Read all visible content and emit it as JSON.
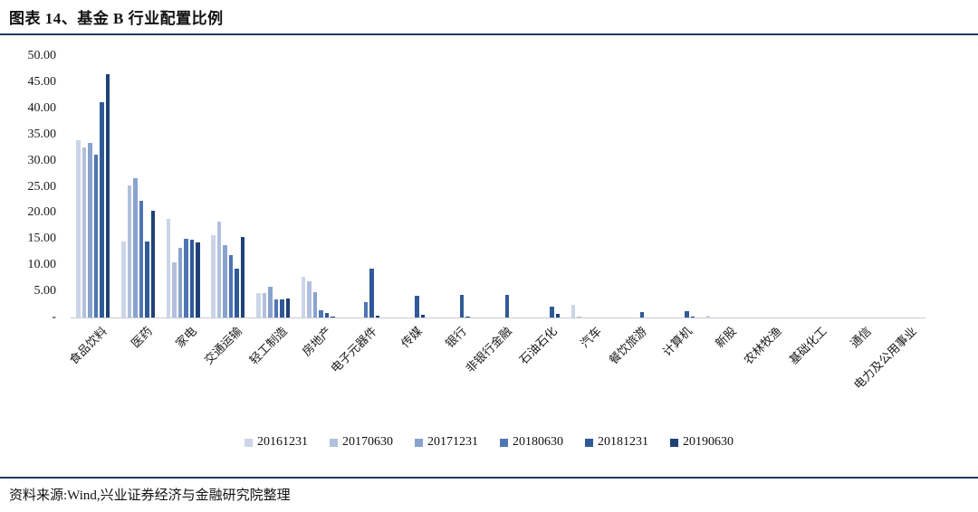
{
  "header": {
    "title": "图表 14、基金 B 行业配置比例"
  },
  "source": {
    "text": "资料来源:Wind,兴业证券经济与金融研究院整理"
  },
  "colors": {
    "accent_rule": "#1F3864",
    "axis_line": "#c9ccd4",
    "text": "#1a1a1a"
  },
  "chart_data": {
    "type": "bar",
    "title": "图表 14、基金 B 行业配置比例",
    "xlabel": "",
    "ylabel": "",
    "ylim": [
      0,
      50
    ],
    "ytick_step": 5,
    "zero_tick_label": "-",
    "grid": false,
    "legend_position": "bottom",
    "categories": [
      "食品饮料",
      "医药",
      "家电",
      "交通运输",
      "轻工制造",
      "房地产",
      "电子元器件",
      "传媒",
      "银行",
      "非银行金融",
      "石油石化",
      "汽车",
      "餐饮旅游",
      "计算机",
      "新股",
      "农林牧渔",
      "基础化工",
      "通信",
      "电力及公用事业"
    ],
    "series": [
      {
        "name": "20161231",
        "color": "#ccd5e8",
        "values": [
          33.9,
          14.5,
          18.8,
          15.8,
          4.7,
          7.8,
          0,
          0,
          0,
          0,
          0,
          2.5,
          0,
          0,
          0.3,
          0,
          0,
          0,
          0
        ]
      },
      {
        "name": "20170630",
        "color": "#b1c0dd",
        "values": [
          32.5,
          25.2,
          10.6,
          18.4,
          4.7,
          6.9,
          0,
          0,
          0,
          0,
          0,
          0.2,
          0,
          0,
          0,
          0,
          0,
          0,
          0
        ]
      },
      {
        "name": "20171231",
        "color": "#89a3cf",
        "values": [
          33.4,
          26.7,
          13.4,
          13.9,
          5.8,
          4.8,
          0,
          0,
          0,
          0,
          0,
          0,
          0,
          0,
          0,
          0,
          0,
          0,
          0
        ]
      },
      {
        "name": "20180630",
        "color": "#4f75b5",
        "values": [
          31.1,
          22.3,
          15.1,
          11.9,
          3.5,
          1.3,
          2.9,
          0,
          0,
          0,
          0,
          0,
          0,
          0,
          0,
          0,
          0,
          0,
          0
        ]
      },
      {
        "name": "20181231",
        "color": "#2f5a98",
        "values": [
          41.2,
          14.6,
          14.9,
          9.3,
          3.5,
          0.9,
          9.3,
          4.2,
          4.3,
          4.3,
          2.0,
          0,
          1.0,
          1.2,
          0,
          0,
          0,
          0,
          0
        ]
      },
      {
        "name": "20190630",
        "color": "#1f4276",
        "values": [
          46.6,
          20.4,
          14.3,
          15.4,
          3.6,
          0.2,
          0.4,
          0.5,
          0.2,
          0,
          0.7,
          0,
          0,
          0.2,
          0,
          0,
          0,
          0,
          0
        ]
      }
    ]
  }
}
